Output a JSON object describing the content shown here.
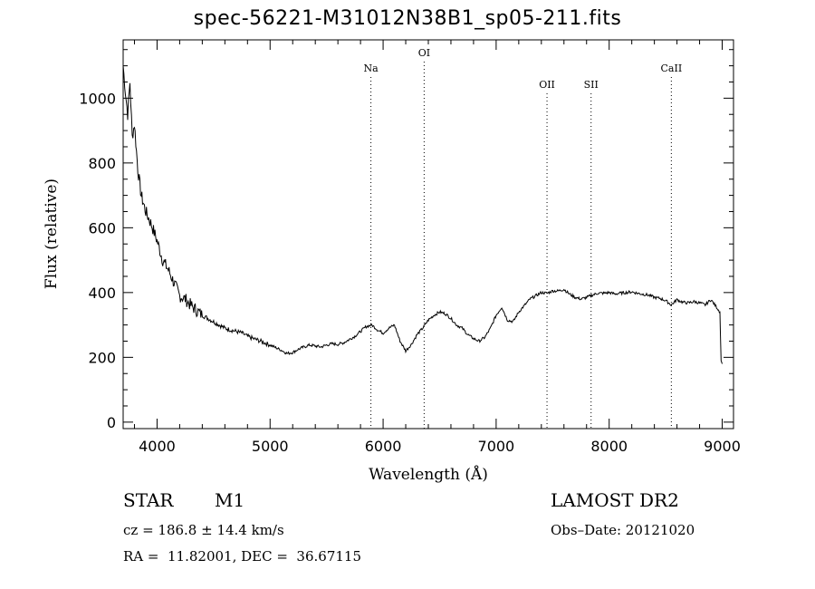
{
  "chart_data": {
    "type": "line",
    "title": "spec-56221-M31012N38B1_sp05-211.fits",
    "xlabel": "Wavelength (Å)",
    "ylabel": "Flux (relative)",
    "xlim": [
      3700,
      9100
    ],
    "ylim": [
      -20,
      1180
    ],
    "x_ticks": [
      4000,
      5000,
      6000,
      7000,
      8000,
      9000
    ],
    "y_ticks": [
      0,
      200,
      400,
      600,
      800,
      1000
    ],
    "x_minor_step": 200,
    "y_minor_step": 50,
    "grid": false,
    "line_color": "#000000",
    "series": [
      {
        "x": [
          3700,
          3720,
          3740,
          3760,
          3780,
          3800,
          3830,
          3860,
          3900,
          3950,
          4000,
          4050,
          4100,
          4150,
          4200,
          4250,
          4300,
          4350,
          4400,
          4450,
          4500,
          4550,
          4600,
          4650,
          4700,
          4750,
          4800,
          4850,
          4900,
          4950,
          5000,
          5050,
          5100,
          5150,
          5200,
          5250,
          5300,
          5350,
          5400,
          5450,
          5500,
          5550,
          5600,
          5650,
          5700,
          5750,
          5800,
          5850,
          5900,
          5950,
          6000,
          6050,
          6100,
          6150,
          6200,
          6250,
          6300,
          6350,
          6400,
          6450,
          6500,
          6550,
          6600,
          6650,
          6700,
          6750,
          6800,
          6850,
          6900,
          6950,
          7000,
          7050,
          7100,
          7150,
          7200,
          7250,
          7300,
          7350,
          7400,
          7450,
          7500,
          7550,
          7600,
          7650,
          7700,
          7750,
          7800,
          7850,
          7900,
          7950,
          8000,
          8050,
          8100,
          8150,
          8200,
          8250,
          8300,
          8350,
          8400,
          8450,
          8500,
          8550,
          8600,
          8650,
          8700,
          8750,
          8800,
          8850,
          8900,
          8950,
          8980,
          8990,
          9000
        ],
        "y": [
          1100,
          1020,
          950,
          1050,
          880,
          920,
          780,
          700,
          650,
          610,
          560,
          500,
          470,
          430,
          390,
          380,
          360,
          345,
          330,
          320,
          310,
          300,
          290,
          285,
          280,
          275,
          265,
          258,
          252,
          245,
          238,
          230,
          222,
          212,
          215,
          225,
          232,
          238,
          235,
          232,
          238,
          242,
          240,
          245,
          255,
          265,
          280,
          295,
          300,
          285,
          275,
          290,
          300,
          250,
          220,
          240,
          270,
          290,
          315,
          330,
          340,
          335,
          320,
          300,
          290,
          270,
          258,
          250,
          262,
          290,
          330,
          355,
          315,
          310,
          340,
          360,
          380,
          390,
          400,
          398,
          405,
          405,
          410,
          395,
          385,
          380,
          385,
          392,
          398,
          398,
          400,
          396,
          398,
          400,
          402,
          398,
          395,
          392,
          385,
          382,
          375,
          362,
          378,
          370,
          368,
          372,
          368,
          362,
          378,
          355,
          340,
          190,
          180
        ]
      }
    ],
    "lines": [
      {
        "label": "Na",
        "x": 5892
      },
      {
        "label": "OI",
        "x": 6363
      },
      {
        "label": "OII",
        "x": 7450
      },
      {
        "label": "SII",
        "x": 7840
      },
      {
        "label": "CaII",
        "x": 8550
      }
    ]
  },
  "info": {
    "object_class": "STAR",
    "subclass": "M1",
    "survey": "LAMOST DR2",
    "cz": "cz = 186.8 ± 14.4 km/s",
    "obs_date": "Obs–Date: 20121020",
    "coords": "RA =  11.82001, DEC =  36.67115"
  }
}
